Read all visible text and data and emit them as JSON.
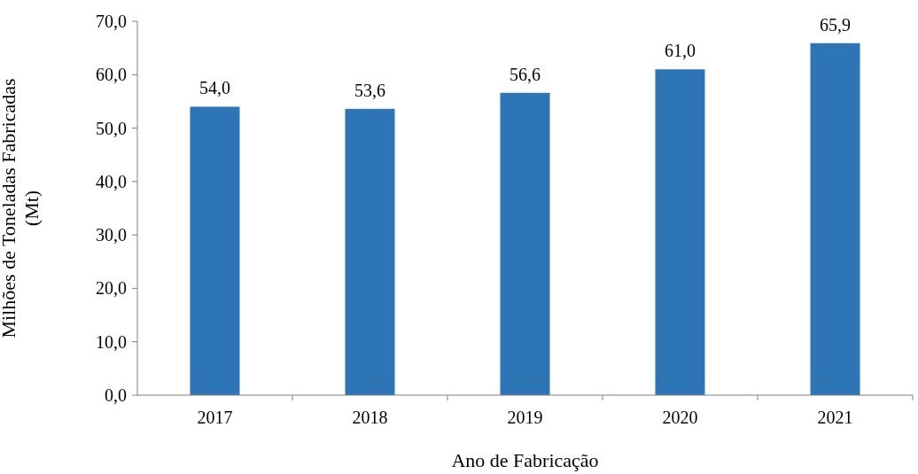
{
  "chart_data": {
    "type": "bar",
    "xlabel": "Ano de Fabricação",
    "ylabel": "Milhões de Toneladas Fabricadas\n(Mt)",
    "categories": [
      "2017",
      "2018",
      "2019",
      "2020",
      "2021"
    ],
    "values": [
      54.0,
      53.6,
      56.6,
      61.0,
      65.9
    ],
    "value_labels": [
      "54,0",
      "53,6",
      "56,6",
      "61,0",
      "65,9"
    ],
    "color": "#2e75b6",
    "ylim": [
      0,
      70
    ],
    "yticks": [
      {
        "value": 0,
        "label": "0,0"
      },
      {
        "value": 10,
        "label": "10,0"
      },
      {
        "value": 20,
        "label": "20,0"
      },
      {
        "value": 30,
        "label": "30,0"
      },
      {
        "value": 40,
        "label": "40,0"
      },
      {
        "value": 50,
        "label": "50,0"
      },
      {
        "value": 60,
        "label": "60,0"
      },
      {
        "value": 70,
        "label": "70,0"
      }
    ],
    "grid": false
  }
}
